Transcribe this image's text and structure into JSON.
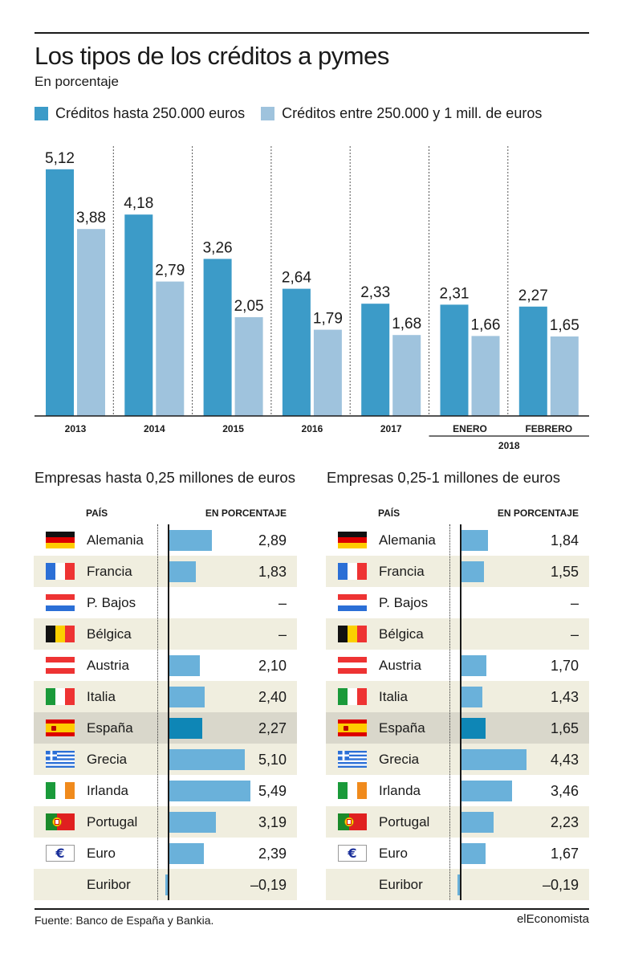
{
  "title": "Los tipos de los créditos a pymes",
  "subtitle": "En porcentaje",
  "colors": {
    "series1": "#3c9bc8",
    "series2": "#9fc3dd",
    "row_bar": "#6ab1da",
    "spain_bar": "#0e86b6",
    "row_shade": "#f0eedf",
    "row_highlight": "#d9d7cb"
  },
  "chart_data": {
    "type": "bar",
    "categories": [
      "2013",
      "2014",
      "2015",
      "2016",
      "2017",
      "ENERO",
      "FEBRERO"
    ],
    "group_label": "2018",
    "series": [
      {
        "name": "Créditos hasta 250.000 euros",
        "values": [
          5.12,
          4.18,
          3.26,
          2.64,
          2.33,
          2.31,
          2.27
        ],
        "labels": [
          "5,12",
          "4,18",
          "3,26",
          "2,64",
          "2,33",
          "2,31",
          "2,27"
        ]
      },
      {
        "name": "Créditos entre 250.000 y 1 mill. de euros",
        "values": [
          3.88,
          2.79,
          2.05,
          1.79,
          1.68,
          1.66,
          1.65
        ],
        "labels": [
          "3,88",
          "2,79",
          "2,05",
          "1,79",
          "1,68",
          "1,66",
          "1,65"
        ]
      }
    ],
    "ylim": [
      0,
      5.6
    ],
    "grid": "dotted vertical separators",
    "legend": "top-left"
  },
  "tables": [
    {
      "title": "Empresas hasta 0,25 millones de euros",
      "col_country": "PAÍS",
      "col_value": "EN PORCENTAJE",
      "rows": [
        {
          "flag": "germany-flag-icon",
          "country": "Alemania",
          "value": 2.89,
          "label": "2,89"
        },
        {
          "flag": "france-flag-icon",
          "country": "Francia",
          "value": 1.83,
          "label": "1,83"
        },
        {
          "flag": "netherlands-flag-icon",
          "country": "P. Bajos",
          "value": null,
          "label": "–"
        },
        {
          "flag": "belgium-flag-icon",
          "country": "Bélgica",
          "value": null,
          "label": "–"
        },
        {
          "flag": "austria-flag-icon",
          "country": "Austria",
          "value": 2.1,
          "label": "2,10"
        },
        {
          "flag": "italy-flag-icon",
          "country": "Italia",
          "value": 2.4,
          "label": "2,40"
        },
        {
          "flag": "spain-flag-icon",
          "country": "España",
          "value": 2.27,
          "label": "2,27"
        },
        {
          "flag": "greece-flag-icon",
          "country": "Grecia",
          "value": 5.1,
          "label": "5,10"
        },
        {
          "flag": "ireland-flag-icon",
          "country": "Irlanda",
          "value": 5.49,
          "label": "5,49"
        },
        {
          "flag": "portugal-flag-icon",
          "country": "Portugal",
          "value": 3.19,
          "label": "3,19"
        },
        {
          "flag": "euro-icon",
          "country": "Euro",
          "value": 2.39,
          "label": "2,39"
        },
        {
          "flag": "",
          "country": "Euribor",
          "value": -0.19,
          "label": "–0,19"
        }
      ]
    },
    {
      "title": "Empresas 0,25-1 millones de euros",
      "col_country": "PAÍS",
      "col_value": "EN PORCENTAJE",
      "rows": [
        {
          "flag": "germany-flag-icon",
          "country": "Alemania",
          "value": 1.84,
          "label": "1,84"
        },
        {
          "flag": "france-flag-icon",
          "country": "Francia",
          "value": 1.55,
          "label": "1,55"
        },
        {
          "flag": "netherlands-flag-icon",
          "country": "P. Bajos",
          "value": null,
          "label": "–"
        },
        {
          "flag": "belgium-flag-icon",
          "country": "Bélgica",
          "value": null,
          "label": "–"
        },
        {
          "flag": "austria-flag-icon",
          "country": "Austria",
          "value": 1.7,
          "label": "1,70"
        },
        {
          "flag": "italy-flag-icon",
          "country": "Italia",
          "value": 1.43,
          "label": "1,43"
        },
        {
          "flag": "spain-flag-icon",
          "country": "España",
          "value": 1.65,
          "label": "1,65"
        },
        {
          "flag": "greece-flag-icon",
          "country": "Grecia",
          "value": 4.43,
          "label": "4,43"
        },
        {
          "flag": "ireland-flag-icon",
          "country": "Irlanda",
          "value": 3.46,
          "label": "3,46"
        },
        {
          "flag": "portugal-flag-icon",
          "country": "Portugal",
          "value": 2.23,
          "label": "2,23"
        },
        {
          "flag": "euro-icon",
          "country": "Euro",
          "value": 1.67,
          "label": "1,67"
        },
        {
          "flag": "",
          "country": "Euribor",
          "value": -0.19,
          "label": "–0,19"
        }
      ]
    }
  ],
  "footer": {
    "source": "Fuente: Banco de España y Bankia.",
    "brand": "elEconomista"
  }
}
